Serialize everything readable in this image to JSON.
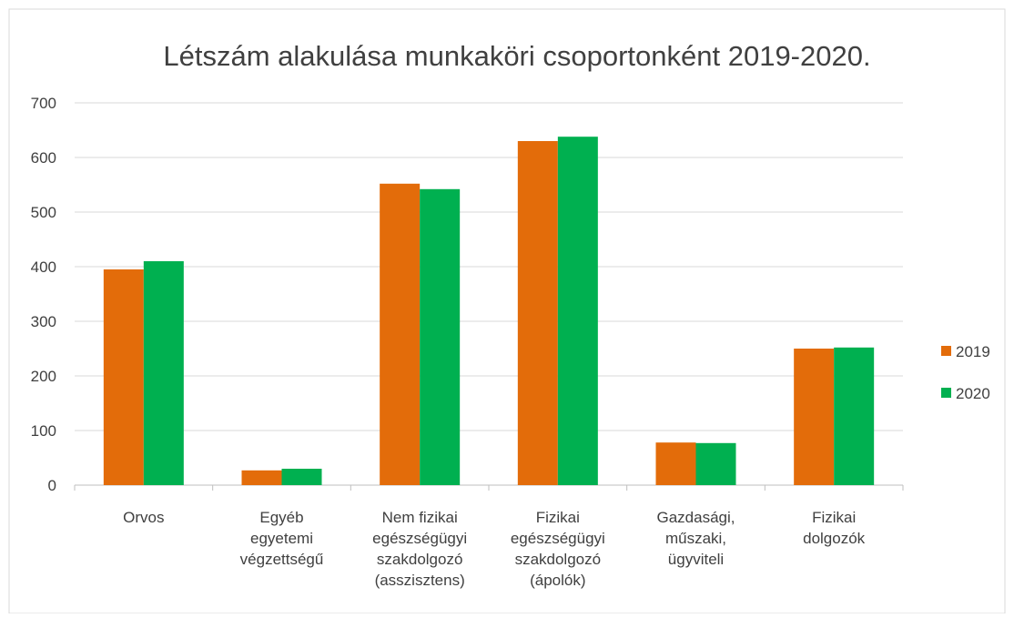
{
  "chart_data": {
    "type": "bar",
    "title": "Létszám alakulása munkaköri csoportonként 2019-2020.",
    "categories": [
      "Orvos",
      "Egyéb egyetemi végzettségű",
      "Nem fizikai egészségügyi szakdolgozó (asszisztens)",
      "Fizikai egészségügyi szakdolgozó (ápolók)",
      "Gazdasági, műszaki, ügyviteli",
      "Fizikai dolgozók"
    ],
    "series": [
      {
        "name": "2019",
        "color": "#e36c0a",
        "values": [
          395,
          27,
          552,
          630,
          78,
          250
        ]
      },
      {
        "name": "2020",
        "color": "#00b050",
        "values": [
          410,
          30,
          542,
          638,
          77,
          252
        ]
      }
    ],
    "ylim": [
      0,
      700
    ],
    "yticks": [
      0,
      100,
      200,
      300,
      400,
      500,
      600,
      700
    ],
    "grid": true,
    "legend": "right"
  }
}
